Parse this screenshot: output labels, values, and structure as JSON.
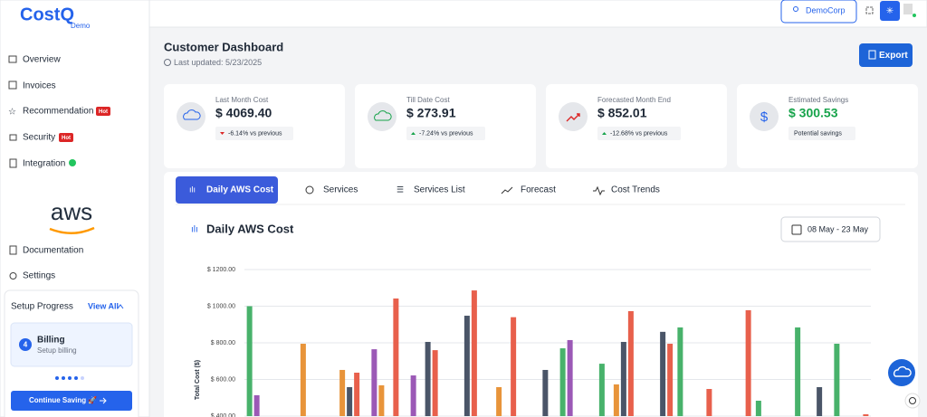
{
  "logo": {
    "name": "CostQ",
    "tagline": "Demo"
  },
  "nav": [
    {
      "label": "Overview"
    },
    {
      "label": "Invoices"
    },
    {
      "label": "Recommendation",
      "badge": "Hot"
    },
    {
      "label": "Security",
      "badge": "Hot"
    },
    {
      "label": "Integration"
    }
  ],
  "aws_logo": "aws",
  "nav_bottom": [
    "Documentation",
    "Settings"
  ],
  "setup": {
    "title": "Setup Progress",
    "link": "View All",
    "step_number": "4",
    "step_title": "Billing",
    "step_text": "Setup billing",
    "button": "Continue Saving 🚀"
  },
  "topbar": {
    "account": "DemoCorp"
  },
  "header": {
    "title": "Customer Dashboard",
    "updated": "Last updated: 5/23/2025",
    "export": "Export"
  },
  "cards": [
    {
      "label": "Last Month Cost",
      "value": "$ 4069.40",
      "change": "-6.14% vs previous"
    },
    {
      "label": "Till Date Cost",
      "value": "$ 273.91",
      "change": "-7.24% vs previous"
    },
    {
      "label": "Forecasted Month End",
      "value": "$ 852.01",
      "change": "-12.68% vs previous"
    },
    {
      "label": "Estimated Savings",
      "value": "$ 300.53",
      "change": "Potential savings"
    }
  ],
  "tabs": [
    "Daily AWS Cost",
    "Services",
    "Services List",
    "Forecast",
    "Cost Trends"
  ],
  "chart_data": {
    "type": "bar",
    "title": "Daily AWS Cost",
    "date_range": "08 May - 23 May",
    "y_label": "Total Cost ($)",
    "categories": [
      null,
      null,
      null,
      null,
      null,
      null,
      null,
      null,
      null,
      null,
      null,
      null,
      null,
      null,
      null,
      null
    ],
    "series": [
      {
        "color": "#48b26b",
        "values": [
          1000,
          null,
          null,
          null,
          null,
          null,
          null,
          null,
          770,
          686,
          null,
          884,
          null,
          484,
          884,
          795
        ]
      },
      {
        "color": "#9b59b6",
        "values": [
          514,
          null,
          null,
          765,
          622,
          null,
          null,
          null,
          815,
          null,
          null,
          null,
          null,
          null,
          null,
          null
        ]
      },
      {
        "color": "#e8943a",
        "values": [
          null,
          795,
          652,
          568,
          null,
          null,
          558,
          null,
          null,
          573,
          null,
          null,
          null,
          null,
          null,
          null
        ]
      },
      {
        "color": "#4a5568",
        "values": [
          null,
          null,
          558,
          null,
          805,
          948,
          null,
          652,
          null,
          805,
          860,
          null,
          null,
          null,
          558,
          null
        ]
      },
      {
        "color": "#e8604c",
        "values": [
          null,
          null,
          637,
          1042,
          760,
          1086,
          940,
          null,
          null,
          973,
          795,
          548,
          978,
          null,
          null,
          410
        ]
      }
    ],
    "ylim": [
      400,
      1200
    ],
    "yticks": [
      {
        "value": 400,
        "label": "$ 400.00"
      },
      {
        "value": 600,
        "label": "$ 600.00"
      },
      {
        "value": 800,
        "label": "$ 800.00"
      },
      {
        "value": 1000,
        "label": "$ 1000.00"
      },
      {
        "value": 1200,
        "label": "$ 1200.00"
      }
    ],
    "grid": true
  }
}
